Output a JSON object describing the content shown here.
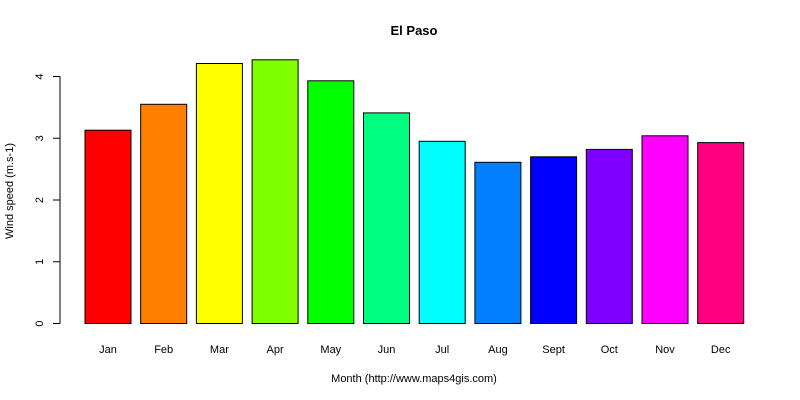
{
  "chart_data": {
    "type": "bar",
    "title": "El Paso",
    "xlabel": "Month (http://www.maps4gis.com)",
    "ylabel": "Wind speed (m.s-1)",
    "categories": [
      "Jan",
      "Feb",
      "Mar",
      "Apr",
      "May",
      "Jun",
      "Jul",
      "Aug",
      "Sept",
      "Oct",
      "Nov",
      "Dec"
    ],
    "values": [
      3.13,
      3.55,
      4.21,
      4.27,
      3.93,
      3.41,
      2.95,
      2.61,
      2.7,
      2.82,
      3.04,
      2.93
    ],
    "colors": [
      "#FF0000",
      "#FF8000",
      "#FFFF00",
      "#80FF00",
      "#00FF00",
      "#00FF80",
      "#00FFFF",
      "#0080FF",
      "#0000FF",
      "#8000FF",
      "#FF00FF",
      "#FF0080"
    ],
    "yticks": [
      0,
      1,
      2,
      3,
      4
    ],
    "ylim": [
      0,
      4.4
    ],
    "grid": false,
    "legend": "none"
  }
}
